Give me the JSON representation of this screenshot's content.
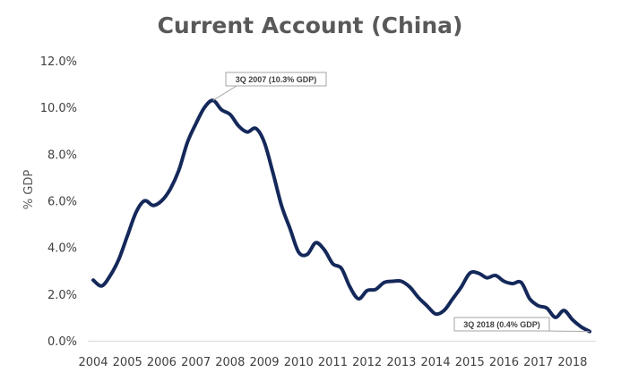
{
  "chart_data": {
    "type": "line",
    "title": "Current Account (China)",
    "xlabel": "",
    "ylabel": "% GDP",
    "ylim": [
      0,
      12
    ],
    "y_ticks": [
      "0.0%",
      "2.0%",
      "4.0%",
      "6.0%",
      "8.0%",
      "10.0%",
      "12.0%"
    ],
    "x_ticks": [
      "2004",
      "2005",
      "2006",
      "2007",
      "2008",
      "2009",
      "2010",
      "2011",
      "2012",
      "2013",
      "2014",
      "2015",
      "2016",
      "2017",
      "2018"
    ],
    "grid": false,
    "legend": "none",
    "series_color": "#14285a",
    "series": [
      {
        "x": [
          2004.0,
          2004.25,
          2004.5,
          2004.75,
          2005.0,
          2005.25,
          2005.5,
          2005.75,
          2006.0,
          2006.25,
          2006.5,
          2006.75,
          2007.0,
          2007.25,
          2007.5,
          2007.75,
          2008.0,
          2008.25,
          2008.5,
          2008.75,
          2009.0,
          2009.25,
          2009.5,
          2009.75,
          2010.0,
          2010.25,
          2010.5,
          2010.75,
          2011.0,
          2011.25,
          2011.5,
          2011.75,
          2012.0,
          2012.25,
          2012.5,
          2012.75,
          2013.0,
          2013.25,
          2013.5,
          2013.75,
          2014.0,
          2014.25,
          2014.5,
          2014.75,
          2015.0,
          2015.25,
          2015.5,
          2015.75,
          2016.0,
          2016.25,
          2016.5,
          2016.75,
          2017.0,
          2017.25,
          2017.5,
          2017.75,
          2018.0,
          2018.25,
          2018.5
        ],
        "values": [
          2.6,
          2.35,
          2.8,
          3.5,
          4.5,
          5.5,
          6.0,
          5.8,
          6.0,
          6.5,
          7.3,
          8.5,
          9.3,
          10.0,
          10.3,
          9.9,
          9.7,
          9.2,
          8.95,
          9.1,
          8.5,
          7.2,
          5.8,
          4.8,
          3.8,
          3.7,
          4.2,
          3.9,
          3.3,
          3.1,
          2.3,
          1.8,
          2.15,
          2.2,
          2.5,
          2.55,
          2.55,
          2.3,
          1.85,
          1.5,
          1.15,
          1.3,
          1.8,
          2.3,
          2.9,
          2.9,
          2.7,
          2.8,
          2.55,
          2.45,
          2.5,
          1.8,
          1.5,
          1.4,
          1.0,
          1.3,
          0.9,
          0.6,
          0.4
        ]
      }
    ],
    "annotations": [
      {
        "text": "3Q 2007 (10.3% GDP)",
        "x": 2007.5,
        "y": 10.3
      },
      {
        "text": "3Q 2018 (0.4% GDP)",
        "x": 2018.5,
        "y": 0.4
      }
    ]
  }
}
